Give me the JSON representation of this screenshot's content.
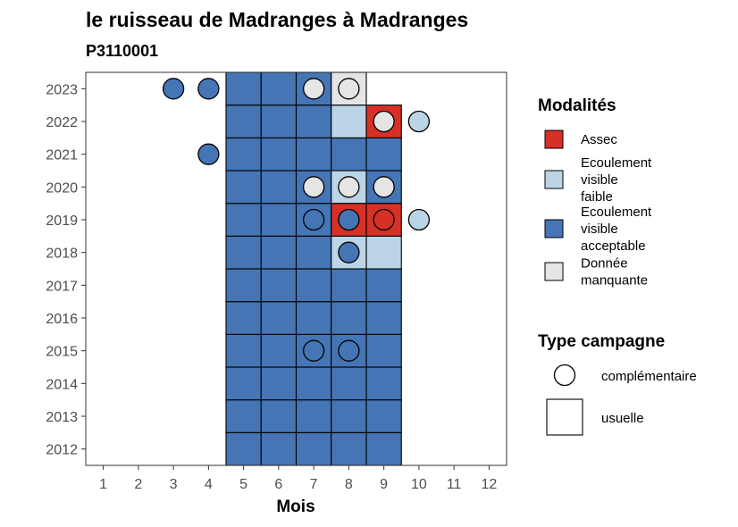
{
  "chart_data": {
    "type": "heatmap",
    "title": "le ruisseau de Madranges à Madranges",
    "subtitle": "P3110001",
    "xlabel": "Mois",
    "ylabel": "",
    "x_ticks": [
      "1",
      "2",
      "3",
      "4",
      "5",
      "6",
      "7",
      "8",
      "9",
      "10",
      "11",
      "12"
    ],
    "y_ticks": [
      "2012",
      "2013",
      "2014",
      "2015",
      "2016",
      "2017",
      "2018",
      "2019",
      "2020",
      "2021",
      "2022",
      "2023"
    ],
    "xlim": [
      0.5,
      12.5
    ],
    "ylim": [
      2011.5,
      2023.5
    ],
    "grid": false,
    "legend_position": "right",
    "colors": {
      "Assec": "#d73027",
      "Ecoulement visible faible": "#bcd5e6",
      "Ecoulement visible acceptable": "#4575b4",
      "Donnée manquante": "#e5e5e5"
    },
    "legends": [
      {
        "title": "Modalités",
        "entries": [
          {
            "key": "Assec",
            "lines": [
              "Assec"
            ]
          },
          {
            "key": "Ecoulement visible faible",
            "lines": [
              "Ecoulement",
              "visible",
              "faible"
            ]
          },
          {
            "key": "Ecoulement visible acceptable",
            "lines": [
              "Ecoulement",
              "visible",
              "acceptable"
            ]
          },
          {
            "key": "Donnée manquante",
            "lines": [
              "Donnée",
              "manquante"
            ]
          }
        ]
      },
      {
        "title": "Type campagne",
        "entries": [
          {
            "key": "complémentaire",
            "shape": "circle",
            "lines": [
              "complémentaire"
            ]
          },
          {
            "key": "usuelle",
            "shape": "square",
            "lines": [
              "usuelle"
            ]
          }
        ]
      }
    ],
    "points": [
      {
        "year": 2012,
        "month": 5,
        "modalite": "Ecoulement visible acceptable",
        "type": "usuelle"
      },
      {
        "year": 2012,
        "month": 6,
        "modalite": "Ecoulement visible acceptable",
        "type": "usuelle"
      },
      {
        "year": 2012,
        "month": 7,
        "modalite": "Ecoulement visible acceptable",
        "type": "usuelle"
      },
      {
        "year": 2012,
        "month": 8,
        "modalite": "Ecoulement visible acceptable",
        "type": "usuelle"
      },
      {
        "year": 2012,
        "month": 9,
        "modalite": "Ecoulement visible acceptable",
        "type": "usuelle"
      },
      {
        "year": 2013,
        "month": 5,
        "modalite": "Ecoulement visible acceptable",
        "type": "usuelle"
      },
      {
        "year": 2013,
        "month": 6,
        "modalite": "Ecoulement visible acceptable",
        "type": "usuelle"
      },
      {
        "year": 2013,
        "month": 7,
        "modalite": "Ecoulement visible acceptable",
        "type": "usuelle"
      },
      {
        "year": 2013,
        "month": 8,
        "modalite": "Ecoulement visible acceptable",
        "type": "usuelle"
      },
      {
        "year": 2013,
        "month": 9,
        "modalite": "Ecoulement visible acceptable",
        "type": "usuelle"
      },
      {
        "year": 2014,
        "month": 5,
        "modalite": "Ecoulement visible acceptable",
        "type": "usuelle"
      },
      {
        "year": 2014,
        "month": 6,
        "modalite": "Ecoulement visible acceptable",
        "type": "usuelle"
      },
      {
        "year": 2014,
        "month": 7,
        "modalite": "Ecoulement visible acceptable",
        "type": "usuelle"
      },
      {
        "year": 2014,
        "month": 8,
        "modalite": "Ecoulement visible acceptable",
        "type": "usuelle"
      },
      {
        "year": 2014,
        "month": 9,
        "modalite": "Ecoulement visible acceptable",
        "type": "usuelle"
      },
      {
        "year": 2015,
        "month": 5,
        "modalite": "Ecoulement visible acceptable",
        "type": "usuelle"
      },
      {
        "year": 2015,
        "month": 6,
        "modalite": "Ecoulement visible acceptable",
        "type": "usuelle"
      },
      {
        "year": 2015,
        "month": 7,
        "modalite": "Ecoulement visible acceptable",
        "type": "usuelle"
      },
      {
        "year": 2015,
        "month": 7,
        "modalite": "Ecoulement visible acceptable",
        "type": "complémentaire"
      },
      {
        "year": 2015,
        "month": 8,
        "modalite": "Ecoulement visible acceptable",
        "type": "usuelle"
      },
      {
        "year": 2015,
        "month": 8,
        "modalite": "Ecoulement visible acceptable",
        "type": "complémentaire"
      },
      {
        "year": 2015,
        "month": 9,
        "modalite": "Ecoulement visible acceptable",
        "type": "usuelle"
      },
      {
        "year": 2016,
        "month": 5,
        "modalite": "Ecoulement visible acceptable",
        "type": "usuelle"
      },
      {
        "year": 2016,
        "month": 6,
        "modalite": "Ecoulement visible acceptable",
        "type": "usuelle"
      },
      {
        "year": 2016,
        "month": 7,
        "modalite": "Ecoulement visible acceptable",
        "type": "usuelle"
      },
      {
        "year": 2016,
        "month": 8,
        "modalite": "Ecoulement visible acceptable",
        "type": "usuelle"
      },
      {
        "year": 2016,
        "month": 9,
        "modalite": "Ecoulement visible acceptable",
        "type": "usuelle"
      },
      {
        "year": 2017,
        "month": 5,
        "modalite": "Ecoulement visible acceptable",
        "type": "usuelle"
      },
      {
        "year": 2017,
        "month": 6,
        "modalite": "Ecoulement visible acceptable",
        "type": "usuelle"
      },
      {
        "year": 2017,
        "month": 7,
        "modalite": "Ecoulement visible acceptable",
        "type": "usuelle"
      },
      {
        "year": 2017,
        "month": 8,
        "modalite": "Ecoulement visible acceptable",
        "type": "usuelle"
      },
      {
        "year": 2017,
        "month": 9,
        "modalite": "Ecoulement visible acceptable",
        "type": "usuelle"
      },
      {
        "year": 2018,
        "month": 5,
        "modalite": "Ecoulement visible acceptable",
        "type": "usuelle"
      },
      {
        "year": 2018,
        "month": 6,
        "modalite": "Ecoulement visible acceptable",
        "type": "usuelle"
      },
      {
        "year": 2018,
        "month": 7,
        "modalite": "Ecoulement visible acceptable",
        "type": "usuelle"
      },
      {
        "year": 2018,
        "month": 8,
        "modalite": "Ecoulement visible faible",
        "type": "usuelle"
      },
      {
        "year": 2018,
        "month": 8,
        "modalite": "Ecoulement visible acceptable",
        "type": "complémentaire"
      },
      {
        "year": 2018,
        "month": 9,
        "modalite": "Ecoulement visible faible",
        "type": "usuelle"
      },
      {
        "year": 2019,
        "month": 5,
        "modalite": "Ecoulement visible acceptable",
        "type": "usuelle"
      },
      {
        "year": 2019,
        "month": 6,
        "modalite": "Ecoulement visible acceptable",
        "type": "usuelle"
      },
      {
        "year": 2019,
        "month": 7,
        "modalite": "Ecoulement visible acceptable",
        "type": "usuelle"
      },
      {
        "year": 2019,
        "month": 7,
        "modalite": "Ecoulement visible acceptable",
        "type": "complémentaire"
      },
      {
        "year": 2019,
        "month": 8,
        "modalite": "Assec",
        "type": "usuelle"
      },
      {
        "year": 2019,
        "month": 8,
        "modalite": "Ecoulement visible acceptable",
        "type": "complémentaire"
      },
      {
        "year": 2019,
        "month": 9,
        "modalite": "Assec",
        "type": "usuelle"
      },
      {
        "year": 2019,
        "month": 9,
        "modalite": "Assec",
        "type": "complémentaire"
      },
      {
        "year": 2019,
        "month": 10,
        "modalite": "Ecoulement visible faible",
        "type": "complémentaire"
      },
      {
        "year": 2020,
        "month": 5,
        "modalite": "Ecoulement visible acceptable",
        "type": "usuelle"
      },
      {
        "year": 2020,
        "month": 6,
        "modalite": "Ecoulement visible acceptable",
        "type": "usuelle"
      },
      {
        "year": 2020,
        "month": 7,
        "modalite": "Ecoulement visible acceptable",
        "type": "usuelle"
      },
      {
        "year": 2020,
        "month": 7,
        "modalite": "Donnée manquante",
        "type": "complémentaire"
      },
      {
        "year": 2020,
        "month": 8,
        "modalite": "Ecoulement visible faible",
        "type": "usuelle"
      },
      {
        "year": 2020,
        "month": 8,
        "modalite": "Donnée manquante",
        "type": "complémentaire"
      },
      {
        "year": 2020,
        "month": 9,
        "modalite": "Ecoulement visible acceptable",
        "type": "usuelle"
      },
      {
        "year": 2020,
        "month": 9,
        "modalite": "Donnée manquante",
        "type": "complémentaire"
      },
      {
        "year": 2021,
        "month": 4,
        "modalite": "Ecoulement visible acceptable",
        "type": "complémentaire"
      },
      {
        "year": 2021,
        "month": 5,
        "modalite": "Ecoulement visible acceptable",
        "type": "usuelle"
      },
      {
        "year": 2021,
        "month": 6,
        "modalite": "Ecoulement visible acceptable",
        "type": "usuelle"
      },
      {
        "year": 2021,
        "month": 7,
        "modalite": "Ecoulement visible acceptable",
        "type": "usuelle"
      },
      {
        "year": 2021,
        "month": 8,
        "modalite": "Ecoulement visible acceptable",
        "type": "usuelle"
      },
      {
        "year": 2021,
        "month": 9,
        "modalite": "Ecoulement visible acceptable",
        "type": "usuelle"
      },
      {
        "year": 2022,
        "month": 5,
        "modalite": "Ecoulement visible acceptable",
        "type": "usuelle"
      },
      {
        "year": 2022,
        "month": 6,
        "modalite": "Ecoulement visible acceptable",
        "type": "usuelle"
      },
      {
        "year": 2022,
        "month": 7,
        "modalite": "Ecoulement visible acceptable",
        "type": "usuelle"
      },
      {
        "year": 2022,
        "month": 8,
        "modalite": "Ecoulement visible faible",
        "type": "usuelle"
      },
      {
        "year": 2022,
        "month": 9,
        "modalite": "Assec",
        "type": "usuelle"
      },
      {
        "year": 2022,
        "month": 9,
        "modalite": "Donnée manquante",
        "type": "complémentaire"
      },
      {
        "year": 2022,
        "month": 10,
        "modalite": "Ecoulement visible faible",
        "type": "complémentaire"
      },
      {
        "year": 2023,
        "month": 3,
        "modalite": "Ecoulement visible acceptable",
        "type": "complémentaire"
      },
      {
        "year": 2023,
        "month": 4,
        "modalite": "Ecoulement visible acceptable",
        "type": "complémentaire"
      },
      {
        "year": 2023,
        "month": 5,
        "modalite": "Ecoulement visible acceptable",
        "type": "usuelle"
      },
      {
        "year": 2023,
        "month": 6,
        "modalite": "Ecoulement visible acceptable",
        "type": "usuelle"
      },
      {
        "year": 2023,
        "month": 7,
        "modalite": "Ecoulement visible acceptable",
        "type": "usuelle"
      },
      {
        "year": 2023,
        "month": 7,
        "modalite": "Donnée manquante",
        "type": "complémentaire"
      },
      {
        "year": 2023,
        "month": 8,
        "modalite": "Donnée manquante",
        "type": "usuelle"
      },
      {
        "year": 2023,
        "month": 8,
        "modalite": "Donnée manquante",
        "type": "complémentaire"
      }
    ]
  }
}
